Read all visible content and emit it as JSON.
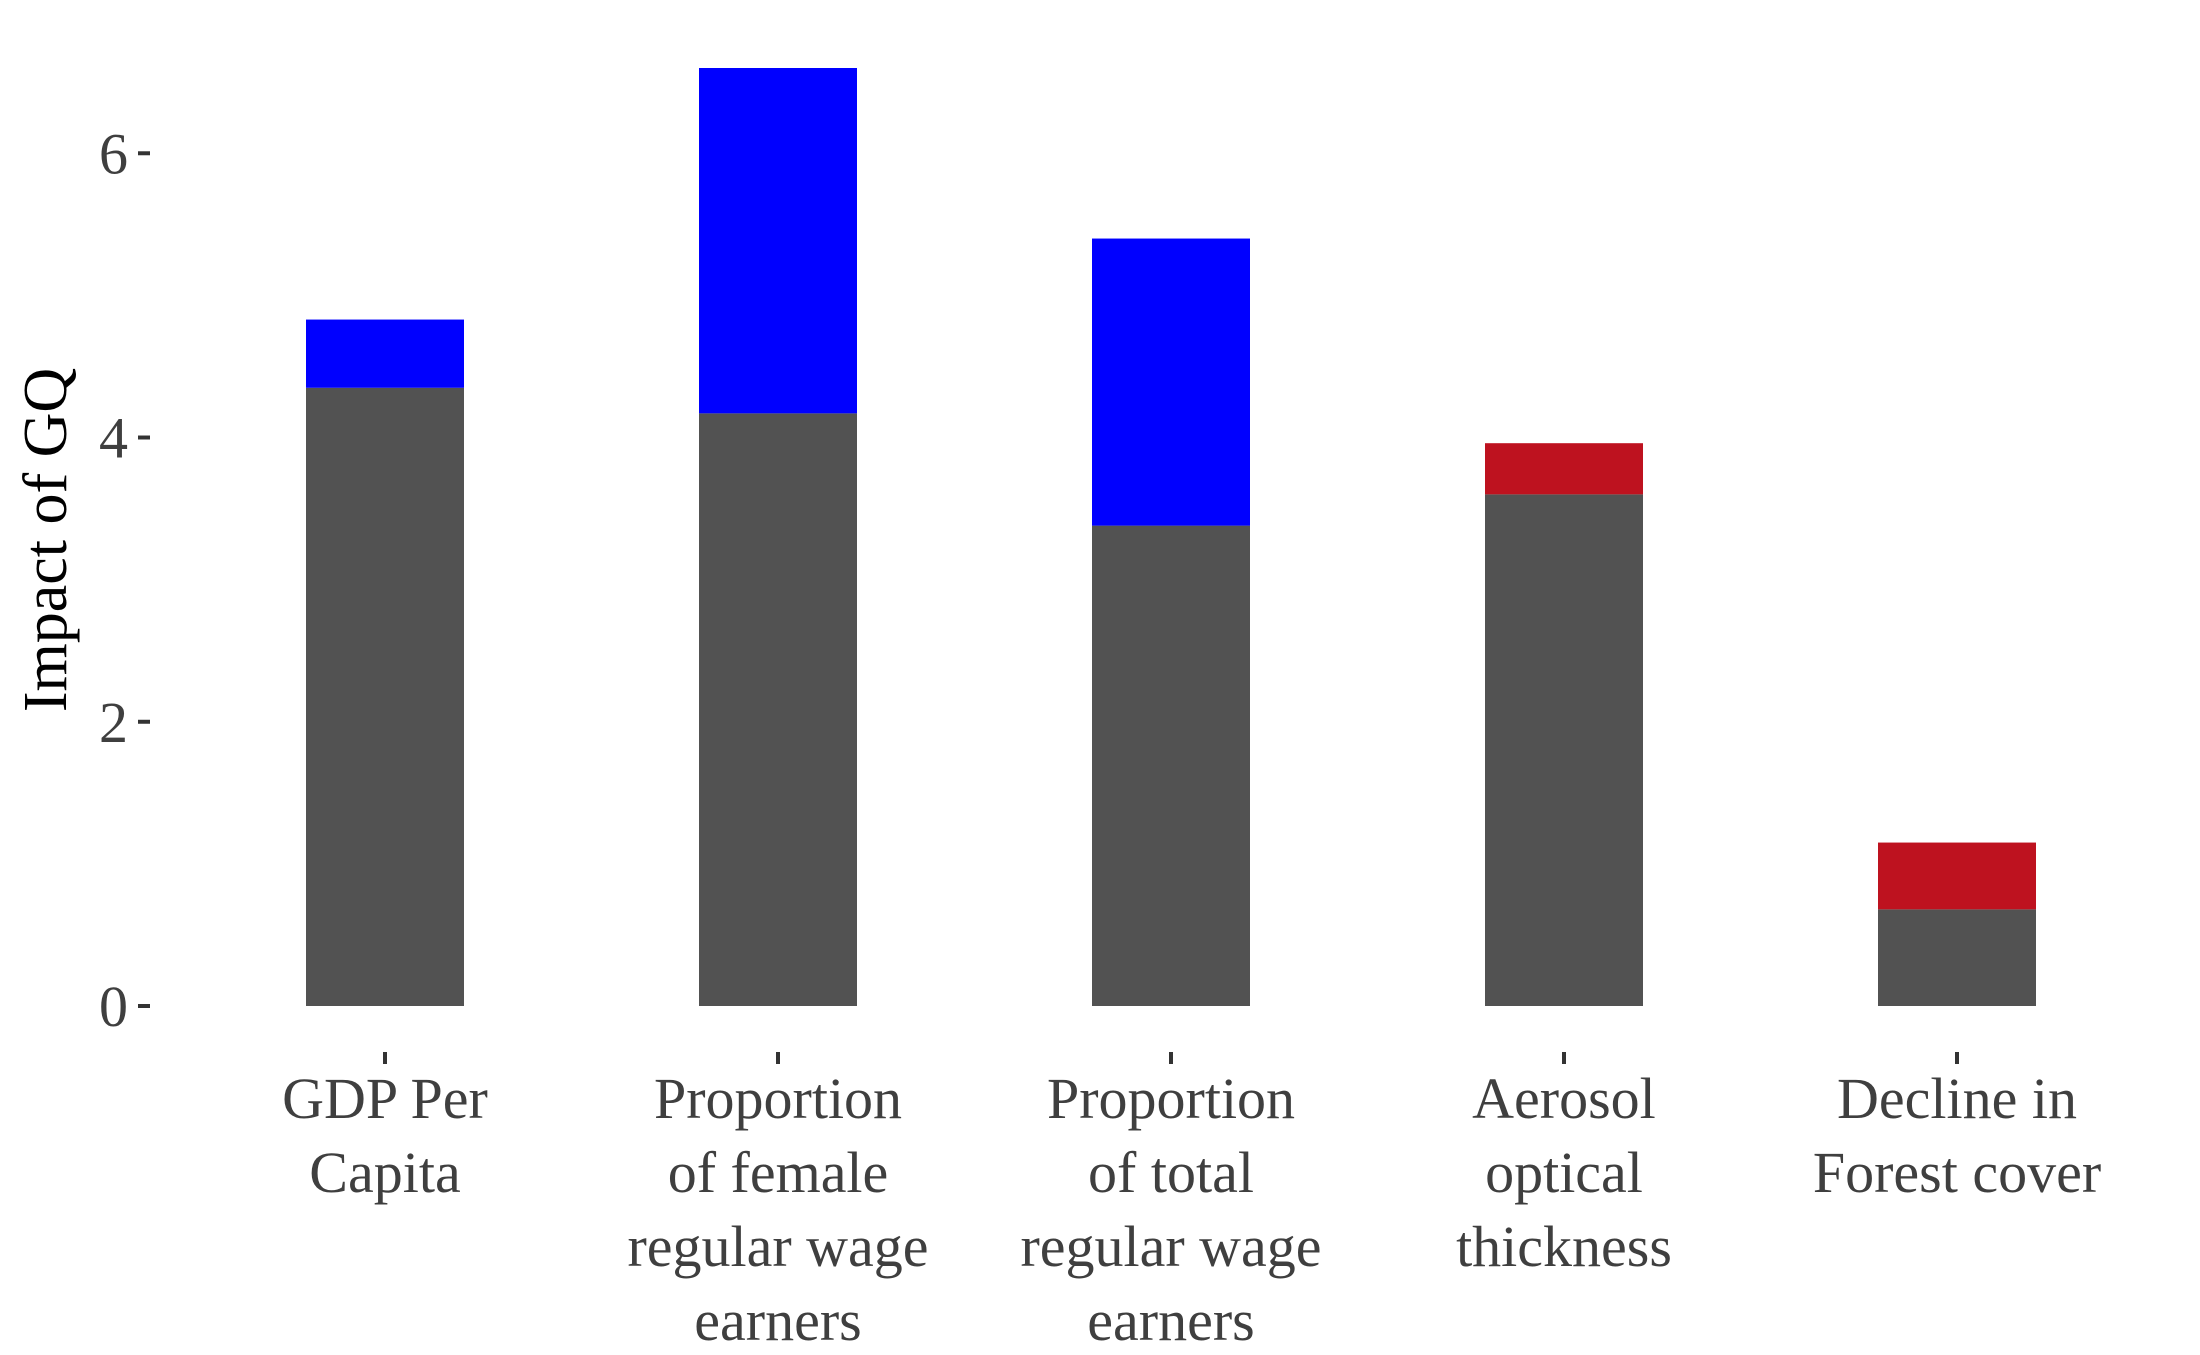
{
  "chart_data": {
    "type": "bar",
    "stacked": true,
    "title": "",
    "xlabel": "",
    "ylabel": "Impact of GQ",
    "ylim": [
      0,
      6.6
    ],
    "yticks": [
      0,
      2,
      4,
      6
    ],
    "grid": false,
    "legend": "none",
    "categories": [
      [
        "GDP Per",
        "Capita"
      ],
      [
        "Proportion",
        "of female",
        "regular wage",
        "earners"
      ],
      [
        "Proportion",
        "of total",
        "regular wage",
        "earners"
      ],
      [
        "Aerosol",
        "optical",
        "thickness"
      ],
      [
        "Decline in",
        "Forest cover"
      ]
    ],
    "base": [
      4.35,
      4.17,
      3.38,
      3.6,
      0.68
    ],
    "top": [
      0.48,
      2.43,
      2.02,
      0.36,
      0.47
    ],
    "top_colors": [
      "#0000ff",
      "#0000ff",
      "#0000ff",
      "#be121f",
      "#be121f"
    ],
    "base_color": "#525252"
  }
}
